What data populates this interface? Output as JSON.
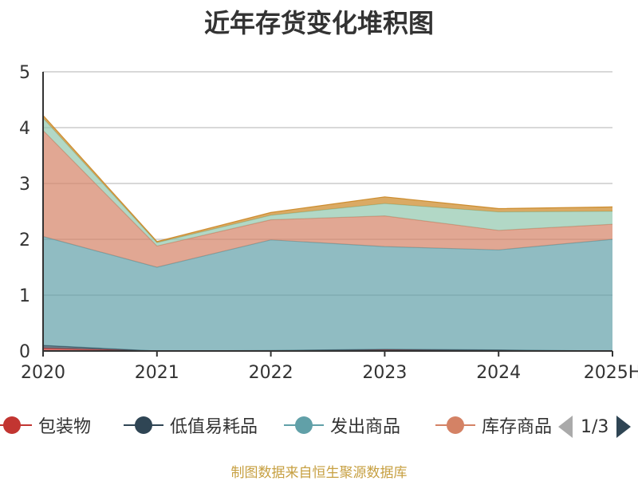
{
  "title": "近年存货变化堆积图",
  "source_note": "制图数据来自恒生聚源数据库",
  "legend_pager": "1/3",
  "chart_data": {
    "type": "area",
    "stacked": true,
    "title": "近年存货变化堆积图",
    "categories": [
      "2020",
      "2021",
      "2022",
      "2023",
      "2024",
      "2025H"
    ],
    "ylim": [
      0,
      5
    ],
    "yticks": [
      0,
      1,
      2,
      3,
      4,
      5
    ],
    "grid": true,
    "legend_position": "bottom",
    "series": [
      {
        "name": "包装物",
        "color": "#c23531",
        "values": [
          0.05,
          0.0,
          0.0,
          0.02,
          0.01,
          0.0
        ]
      },
      {
        "name": "低值易耗品",
        "color": "#2f4554",
        "values": [
          0.05,
          0.0,
          0.01,
          0.01,
          0.01,
          0.0
        ]
      },
      {
        "name": "发出商品",
        "color": "#61a0a8",
        "values": [
          1.95,
          1.5,
          1.98,
          1.84,
          1.79,
          2.0
        ]
      },
      {
        "name": "库存商品",
        "color": "#d48265",
        "values": [
          1.9,
          0.38,
          0.36,
          0.55,
          0.35,
          0.27
        ]
      },
      {
        "name": "",
        "color": "#91c7ae",
        "values": [
          0.22,
          0.06,
          0.08,
          0.22,
          0.33,
          0.23
        ]
      },
      {
        "name": "",
        "color": "#ca8622",
        "values": [
          0.05,
          0.02,
          0.05,
          0.12,
          0.06,
          0.08
        ]
      }
    ]
  }
}
